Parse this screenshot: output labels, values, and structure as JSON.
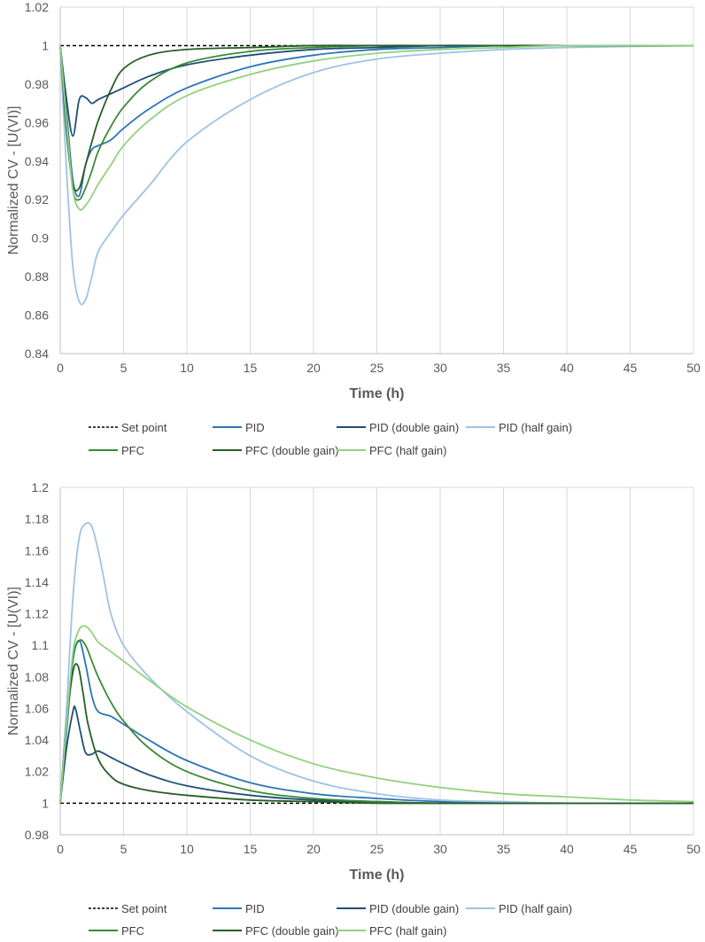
{
  "chart_data": [
    {
      "type": "line",
      "title": "",
      "xlabel": "Time (h)",
      "ylabel": "Normalized CV - [U(VI)]",
      "xlim": [
        0,
        50
      ],
      "ylim": [
        0.84,
        1.02
      ],
      "xticks": [
        "0",
        "5",
        "10",
        "15",
        "20",
        "25",
        "30",
        "35",
        "40",
        "45",
        "50"
      ],
      "yticks": [
        "0.84",
        "0.86",
        "0.88",
        "0.9",
        "0.92",
        "0.94",
        "0.96",
        "0.98",
        "1",
        "1.02"
      ],
      "grid": "vertical",
      "legend_position": "bottom",
      "series": [
        {
          "name": "Set point",
          "color": "#000000",
          "dash": "dashed",
          "x": [
            0,
            50
          ],
          "y": [
            1,
            1
          ]
        },
        {
          "name": "PID",
          "color": "#2e75b6",
          "x": [
            0,
            0.5,
            1,
            1.5,
            2,
            2.5,
            3,
            4,
            5,
            7,
            10,
            15,
            20,
            25,
            30,
            35,
            40,
            50
          ],
          "y": [
            1,
            0.965,
            0.93,
            0.922,
            0.938,
            0.946,
            0.948,
            0.951,
            0.957,
            0.967,
            0.978,
            0.989,
            0.995,
            0.998,
            0.999,
            1,
            1,
            1
          ]
        },
        {
          "name": "PID (double gain)",
          "color": "#1f4e79",
          "x": [
            0,
            0.5,
            1,
            1.5,
            2,
            2.5,
            3,
            4,
            5,
            7,
            10,
            15,
            20,
            25,
            30,
            35,
            40,
            50
          ],
          "y": [
            1,
            0.972,
            0.953,
            0.972,
            0.973,
            0.97,
            0.972,
            0.975,
            0.978,
            0.984,
            0.99,
            0.995,
            0.998,
            0.999,
            1,
            1,
            1,
            1
          ]
        },
        {
          "name": "PID (half gain)",
          "color": "#9dc3e6",
          "x": [
            0,
            0.5,
            1,
            1.5,
            2,
            2.5,
            3,
            4,
            5,
            7,
            10,
            15,
            20,
            25,
            30,
            35,
            40,
            50
          ],
          "y": [
            1,
            0.935,
            0.885,
            0.867,
            0.868,
            0.88,
            0.893,
            0.903,
            0.912,
            0.927,
            0.95,
            0.972,
            0.986,
            0.993,
            0.996,
            0.998,
            0.999,
            1
          ]
        },
        {
          "name": "PFC",
          "color": "#3a8a35",
          "x": [
            0,
            0.5,
            1,
            1.5,
            2,
            2.5,
            3,
            4,
            5,
            7,
            10,
            15,
            20,
            25,
            30,
            35,
            40,
            50
          ],
          "y": [
            1,
            0.96,
            0.925,
            0.92,
            0.926,
            0.935,
            0.945,
            0.958,
            0.968,
            0.981,
            0.991,
            0.997,
            0.999,
            1,
            1,
            1,
            1,
            1
          ]
        },
        {
          "name": "PFC (double gain)",
          "color": "#255e25",
          "x": [
            0,
            0.5,
            1,
            1.5,
            2,
            2.5,
            3,
            4,
            5,
            7,
            10,
            15,
            20,
            25,
            30,
            35,
            40,
            50
          ],
          "y": [
            1,
            0.955,
            0.928,
            0.926,
            0.938,
            0.95,
            0.961,
            0.977,
            0.988,
            0.995,
            0.998,
            0.999,
            1,
            1,
            1,
            1,
            1,
            1
          ]
        },
        {
          "name": "PFC (half gain)",
          "color": "#92d17f",
          "x": [
            0,
            0.5,
            1,
            1.5,
            2,
            2.5,
            3,
            4,
            5,
            7,
            10,
            15,
            20,
            25,
            30,
            35,
            40,
            50
          ],
          "y": [
            1,
            0.96,
            0.925,
            0.915,
            0.917,
            0.922,
            0.928,
            0.938,
            0.948,
            0.961,
            0.974,
            0.985,
            0.992,
            0.996,
            0.998,
            0.999,
            1,
            1
          ]
        }
      ],
      "legend_rows": [
        [
          "Set point",
          "PID",
          "PID (double gain)",
          "PID (half gain)"
        ],
        [
          "PFC",
          "PFC (double gain)",
          "PFC (half gain)"
        ]
      ]
    },
    {
      "type": "line",
      "title": "",
      "xlabel": "Time (h)",
      "ylabel": "Normalized CV - [U(VI)]",
      "xlim": [
        0,
        50
      ],
      "ylim": [
        0.98,
        1.2
      ],
      "xticks": [
        "0",
        "5",
        "10",
        "15",
        "20",
        "25",
        "30",
        "35",
        "40",
        "45",
        "50"
      ],
      "yticks": [
        "0.98",
        "1",
        "1.02",
        "1.04",
        "1.06",
        "1.08",
        "1.1",
        "1.12",
        "1.14",
        "1.16",
        "1.18",
        "1.2"
      ],
      "grid": "vertical",
      "legend_position": "bottom",
      "series": [
        {
          "name": "Set point",
          "color": "#000000",
          "dash": "dashed",
          "x": [
            0,
            50
          ],
          "y": [
            1,
            1
          ]
        },
        {
          "name": "PID",
          "color": "#2e75b6",
          "x": [
            0,
            0.5,
            1,
            1.5,
            2,
            2.5,
            3,
            4,
            5,
            7,
            10,
            15,
            20,
            25,
            30,
            35,
            40,
            50
          ],
          "y": [
            1,
            1.045,
            1.09,
            1.103,
            1.088,
            1.068,
            1.058,
            1.055,
            1.05,
            1.04,
            1.027,
            1.013,
            1.006,
            1.003,
            1.001,
            1.0005,
            1,
            1
          ]
        },
        {
          "name": "PID (double gain)",
          "color": "#1f4e79",
          "x": [
            0,
            0.5,
            1,
            1.2,
            1.6,
            2,
            2.5,
            3,
            4,
            5,
            7,
            10,
            15,
            20,
            25,
            30,
            40,
            50
          ],
          "y": [
            1,
            1.035,
            1.058,
            1.06,
            1.045,
            1.032,
            1.031,
            1.033,
            1.029,
            1.025,
            1.018,
            1.011,
            1.005,
            1.002,
            1.001,
            1,
            1,
            1
          ]
        },
        {
          "name": "PID (half gain)",
          "color": "#9dc3e6",
          "x": [
            0,
            0.5,
            1,
            1.5,
            2,
            2.5,
            3,
            3.5,
            4,
            5,
            7,
            10,
            15,
            20,
            25,
            30,
            35,
            40,
            50
          ],
          "y": [
            1,
            1.06,
            1.13,
            1.168,
            1.177,
            1.175,
            1.16,
            1.14,
            1.12,
            1.1,
            1.08,
            1.058,
            1.03,
            1.014,
            1.006,
            1.002,
            1.001,
            1,
            1
          ]
        },
        {
          "name": "PFC",
          "color": "#3a8a35",
          "x": [
            0,
            0.5,
            1,
            1.5,
            2,
            2.5,
            3,
            4,
            5,
            7,
            10,
            15,
            20,
            25,
            30,
            40,
            50
          ],
          "y": [
            1,
            1.05,
            1.092,
            1.103,
            1.1,
            1.09,
            1.08,
            1.064,
            1.052,
            1.035,
            1.02,
            1.008,
            1.003,
            1.001,
            1,
            1,
            1
          ]
        },
        {
          "name": "PFC (double gain)",
          "color": "#255e25",
          "x": [
            0,
            0.5,
            1,
            1.4,
            1.8,
            2.2,
            3,
            4,
            5,
            7,
            10,
            15,
            20,
            25,
            30,
            40,
            50
          ],
          "y": [
            1,
            1.05,
            1.083,
            1.087,
            1.07,
            1.05,
            1.028,
            1.017,
            1.012,
            1.008,
            1.005,
            1.002,
            1.001,
            1,
            1,
            1,
            1
          ]
        },
        {
          "name": "PFC (half gain)",
          "color": "#92d17f",
          "x": [
            0,
            0.5,
            1,
            1.5,
            2,
            2.5,
            3,
            4,
            5,
            7,
            10,
            15,
            20,
            25,
            30,
            35,
            40,
            45,
            50
          ],
          "y": [
            1,
            1.05,
            1.095,
            1.11,
            1.112,
            1.108,
            1.102,
            1.096,
            1.09,
            1.078,
            1.061,
            1.04,
            1.025,
            1.016,
            1.01,
            1.006,
            1.004,
            1.002,
            1.001
          ]
        }
      ],
      "legend_rows": [
        [
          "Set point",
          "PID",
          "PID (double gain)",
          "PID (half gain)"
        ],
        [
          "PFC",
          "PFC (double gain)",
          "PFC (half gain)"
        ]
      ]
    }
  ]
}
